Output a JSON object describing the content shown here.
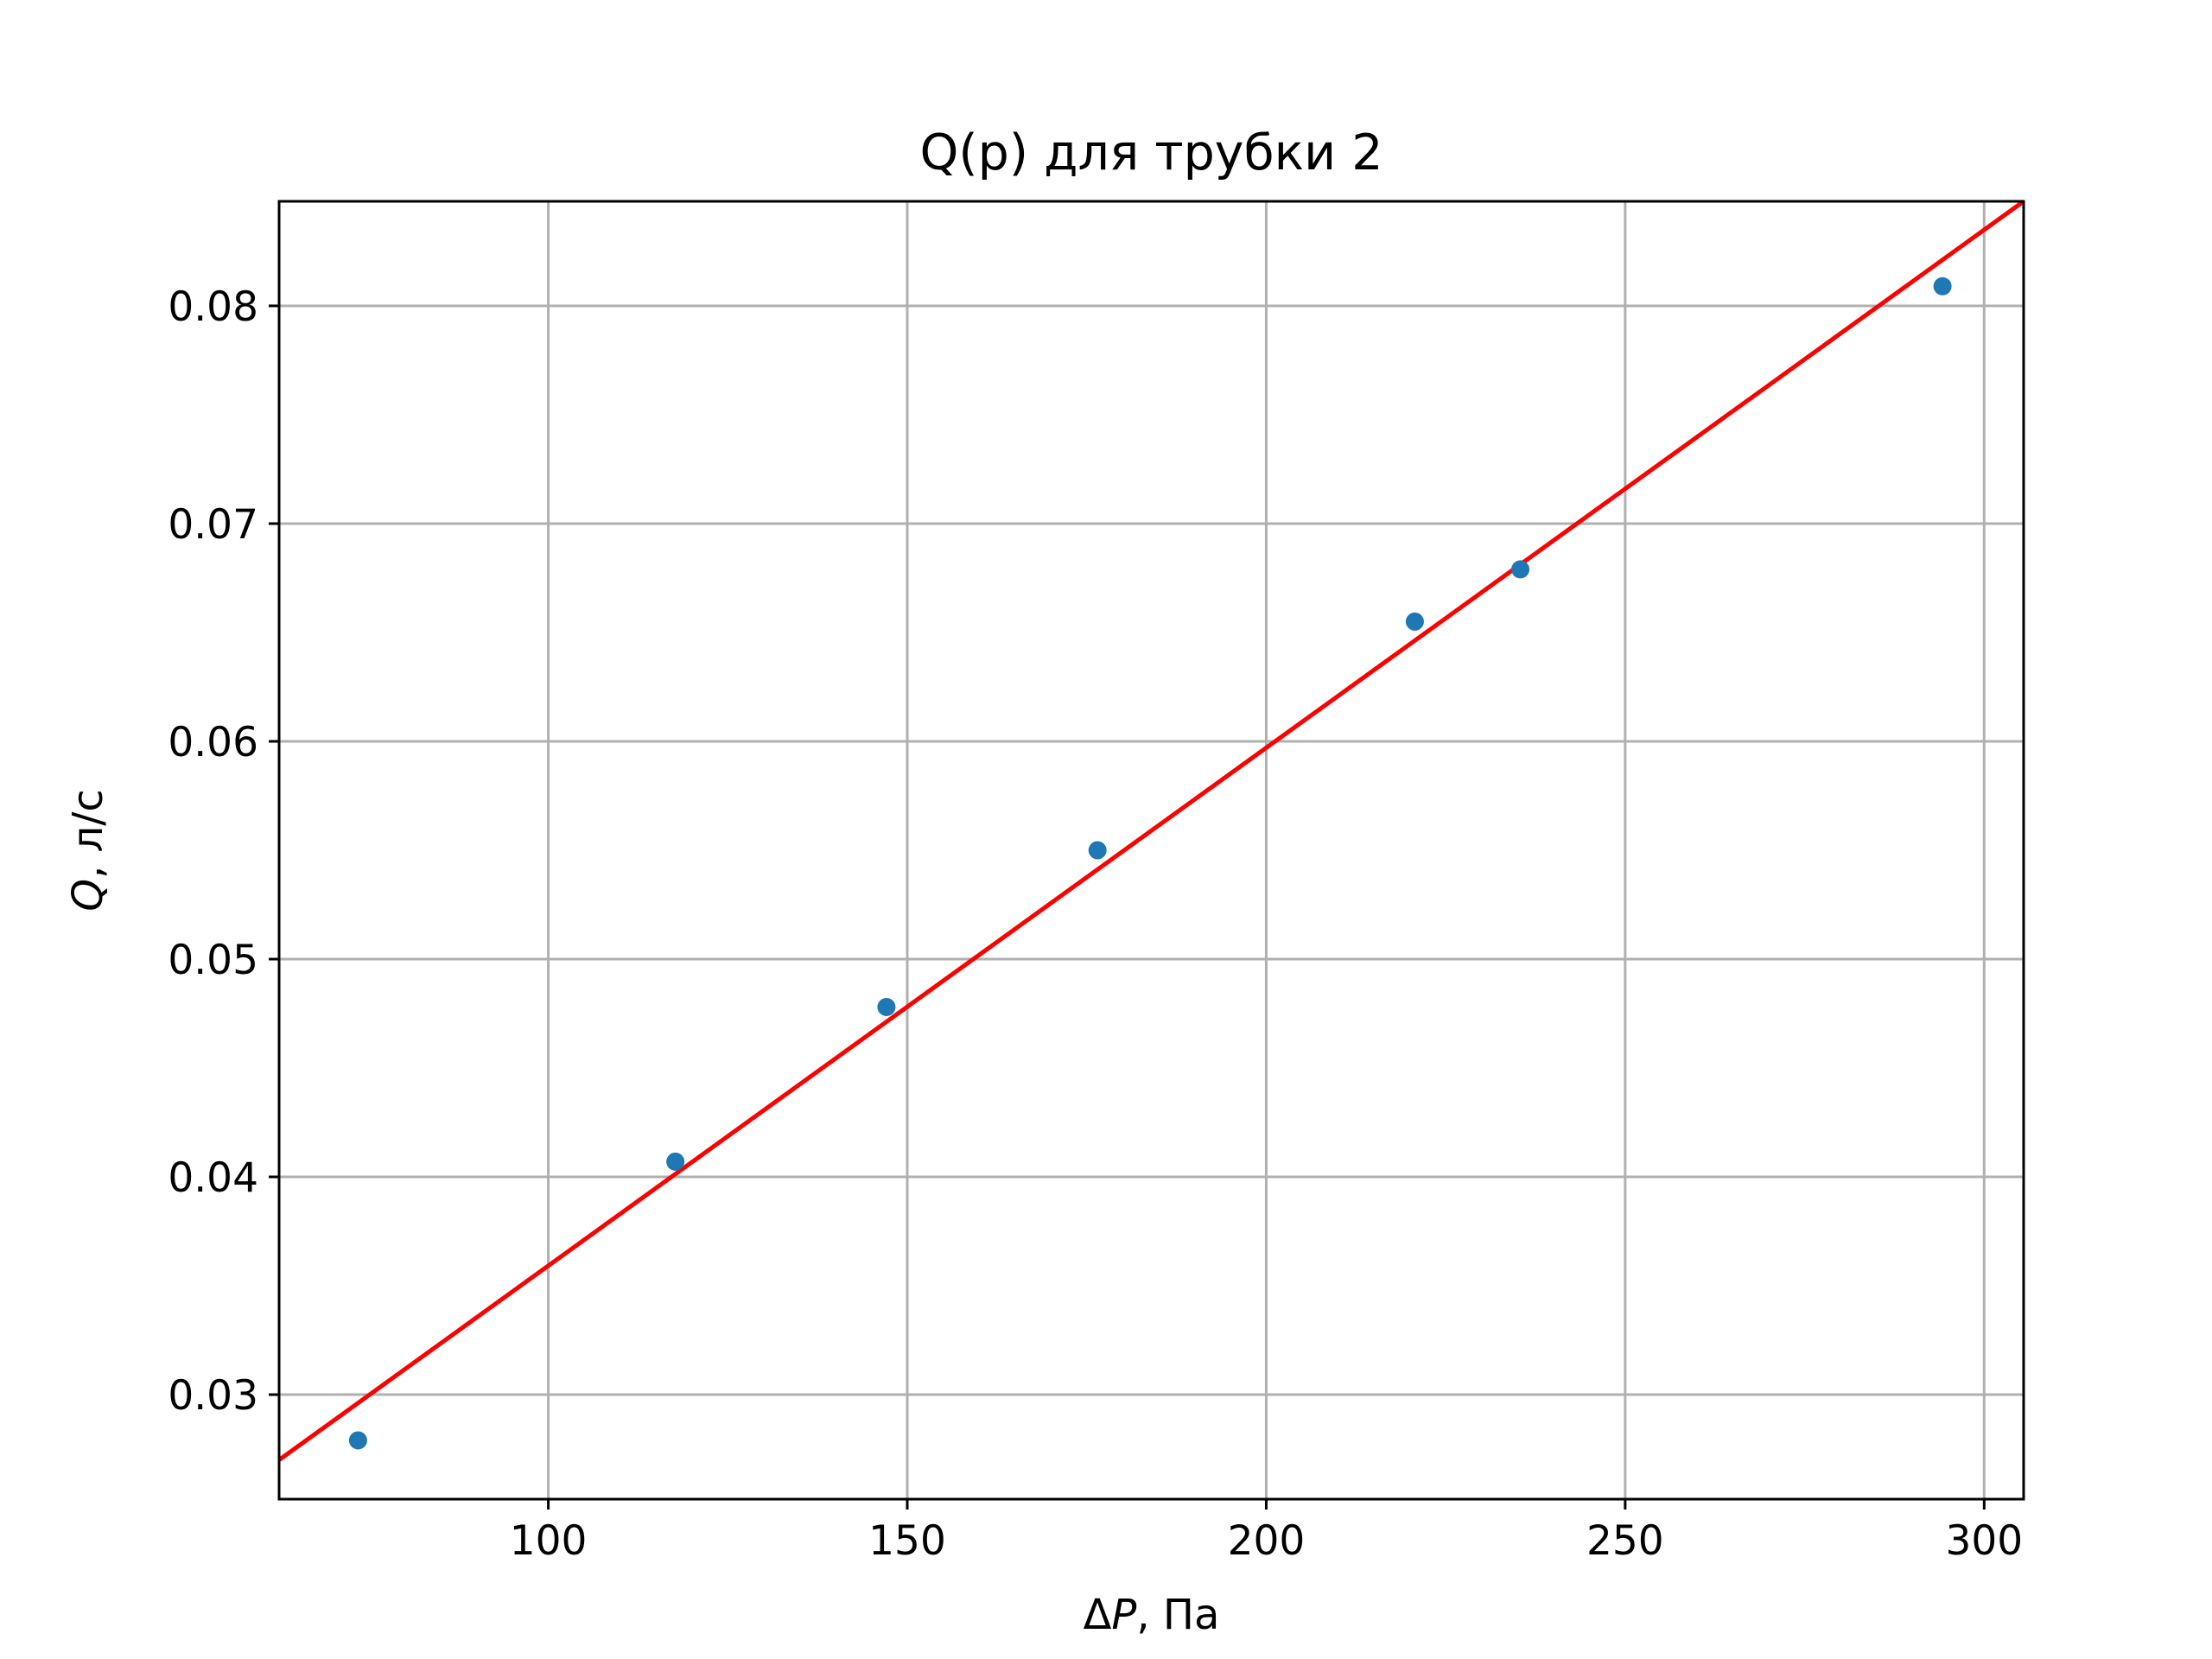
{
  "chart_data": {
    "type": "scatter",
    "title": "Q(p) для трубки 2",
    "xlabel": {
      "symbol": "ΔP",
      "var": "P",
      "delta": "Δ",
      "unit": ", Па"
    },
    "ylabel": {
      "var": "Q",
      "unit": ", л/с"
    },
    "xlim": [
      62.5,
      305.5
    ],
    "ylim": [
      0.0252,
      0.0848
    ],
    "xticks": [
      100,
      150,
      200,
      250,
      300
    ],
    "xtick_labels": [
      "100",
      "150",
      "200",
      "250",
      "300"
    ],
    "yticks": [
      0.03,
      0.04,
      0.05,
      0.06,
      0.07,
      0.08
    ],
    "ytick_labels": [
      "0.03",
      "0.04",
      "0.05",
      "0.06",
      "0.07",
      "0.08"
    ],
    "grid": true,
    "series": [
      {
        "kind": "points",
        "color": "#1f77b4",
        "x": [
          73.5,
          117.7,
          147.1,
          176.5,
          220.7,
          235.4,
          294.2
        ],
        "y": [
          0.0279,
          0.0407,
          0.0478,
          0.055,
          0.0655,
          0.0679,
          0.0809
        ]
      },
      {
        "kind": "fit-line",
        "color": "#ff0000",
        "x": [
          62.5,
          305.5
        ],
        "y": [
          0.027,
          0.0848
        ]
      }
    ]
  }
}
